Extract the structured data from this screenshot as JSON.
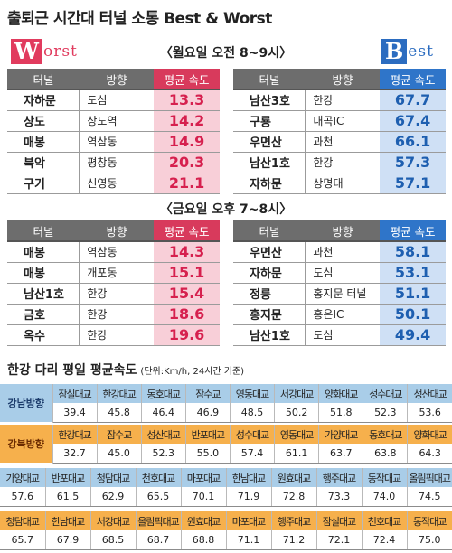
{
  "title": "출퇴근 시간대 터널 소통 Best & Worst",
  "worst_logo": {
    "big": "W",
    "rest": "orst"
  },
  "best_logo": {
    "big": "B",
    "rest": "est"
  },
  "colors": {
    "worst": "#d83a5c",
    "best": "#2f75c9",
    "gray_header": "#6d6d6d",
    "blue_cell": "#a9cde8",
    "orange_cell": "#f6b04c"
  },
  "morning": {
    "label": "〈월요일 오전 8~9시〉",
    "headers": [
      "터널",
      "방향",
      "평균 속도"
    ],
    "worst": [
      {
        "tunnel": "자하문",
        "dir": "도심",
        "speed": "13.3"
      },
      {
        "tunnel": "상도",
        "dir": "상도역",
        "speed": "14.2"
      },
      {
        "tunnel": "매봉",
        "dir": "역삼동",
        "speed": "14.9"
      },
      {
        "tunnel": "북악",
        "dir": "평창동",
        "speed": "20.3"
      },
      {
        "tunnel": "구기",
        "dir": "신영동",
        "speed": "21.1"
      }
    ],
    "best": [
      {
        "tunnel": "남산3호",
        "dir": "한강",
        "speed": "67.7"
      },
      {
        "tunnel": "구룡",
        "dir": "내곡IC",
        "speed": "67.4"
      },
      {
        "tunnel": "우면산",
        "dir": "과천",
        "speed": "66.1"
      },
      {
        "tunnel": "남산1호",
        "dir": "한강",
        "speed": "57.3"
      },
      {
        "tunnel": "자하문",
        "dir": "상명대",
        "speed": "57.1"
      }
    ]
  },
  "evening": {
    "label": "〈금요일 오후 7~8시〉",
    "headers": [
      "터널",
      "방향",
      "평균 속도"
    ],
    "worst": [
      {
        "tunnel": "매봉",
        "dir": "역삼동",
        "speed": "14.3"
      },
      {
        "tunnel": "매봉",
        "dir": "개포동",
        "speed": "15.1"
      },
      {
        "tunnel": "남산1호",
        "dir": "한강",
        "speed": "15.4"
      },
      {
        "tunnel": "금호",
        "dir": "한강",
        "speed": "18.6"
      },
      {
        "tunnel": "옥수",
        "dir": "한강",
        "speed": "19.6"
      }
    ],
    "best": [
      {
        "tunnel": "우면산",
        "dir": "과천",
        "speed": "58.1"
      },
      {
        "tunnel": "자하문",
        "dir": "도심",
        "speed": "53.1"
      },
      {
        "tunnel": "정릉",
        "dir": "홍지문 터널",
        "speed": "51.1"
      },
      {
        "tunnel": "홍지문",
        "dir": "홍은IC",
        "speed": "50.1"
      },
      {
        "tunnel": "남산1호",
        "dir": "도심",
        "speed": "49.4"
      }
    ]
  },
  "bridges": {
    "title": "한강 다리 평일 평균속도",
    "unit": "(단위:Km/h, 24시간 기준)",
    "gangnam": {
      "label": "강남방향",
      "names": [
        "잠실대교",
        "한강대교",
        "동호대교",
        "잠수교",
        "영동대교",
        "서강대교",
        "양화대교",
        "성수대교",
        "성산대교"
      ],
      "values": [
        "39.4",
        "45.8",
        "46.4",
        "46.9",
        "48.5",
        "50.2",
        "51.8",
        "52.3",
        "53.6"
      ]
    },
    "gangbuk": {
      "label": "강북방향",
      "names": [
        "한강대교",
        "잠수교",
        "성산대교",
        "반포대교",
        "성수대교",
        "영동대교",
        "가양대교",
        "동호대교",
        "양화대교"
      ],
      "values": [
        "32.7",
        "45.0",
        "52.3",
        "55.0",
        "57.4",
        "61.1",
        "63.7",
        "63.8",
        "64.3"
      ]
    },
    "row3": {
      "names": [
        "가양대교",
        "반포대교",
        "청담대교",
        "천호대교",
        "마포대교",
        "한남대교",
        "원효대교",
        "행주대교",
        "동작대교",
        "올림픽대교"
      ],
      "values": [
        "57.6",
        "61.5",
        "62.9",
        "65.5",
        "70.1",
        "71.9",
        "72.8",
        "73.3",
        "74.0",
        "74.5"
      ]
    },
    "row4": {
      "names": [
        "청담대교",
        "한남대교",
        "서강대교",
        "올림픽대교",
        "원효대교",
        "마포대교",
        "행주대교",
        "잠실대교",
        "천호대교",
        "동작대교"
      ],
      "values": [
        "65.7",
        "67.9",
        "68.5",
        "68.7",
        "68.8",
        "71.1",
        "71.2",
        "72.1",
        "72.4",
        "75.0"
      ]
    }
  }
}
